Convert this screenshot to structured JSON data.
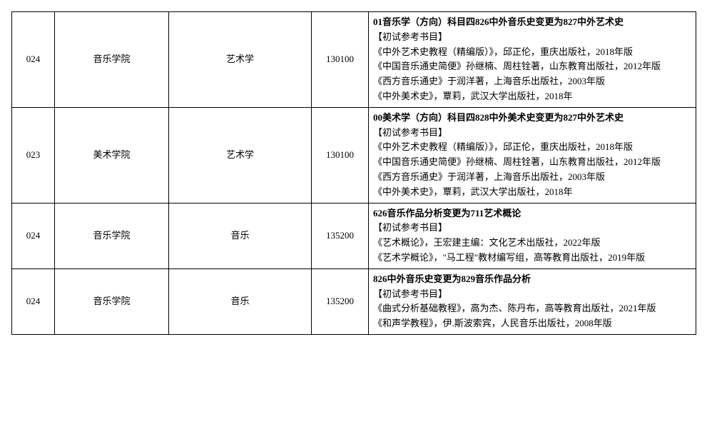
{
  "rows": [
    {
      "code": "024",
      "dept": "音乐学院",
      "subject": "艺术学",
      "num": "130100",
      "title": "01音乐学（方向）科目四826中外音乐史变更为827中外艺术史",
      "book_heading": "【初试参考书目】",
      "books": [
        "《中外艺术史教程（精编版）》，邱正伦，重庆出版社，2018年版",
        "《中国音乐通史简便》孙继楠、周柱铨著，山东教育出版社，2012年版",
        "《西方音乐通史》于润洋著，上海音乐出版社，2003年版",
        "《中外美术史》，覃莉，武汉大学出版社，2018年"
      ]
    },
    {
      "code": "023",
      "dept": "美术学院",
      "subject": "艺术学",
      "num": "130100",
      "title": "00美术学（方向）科目四828中外美术史变更为827中外艺术史",
      "book_heading": "【初试参考书目】",
      "books": [
        "《中外艺术史教程（精编版）》，邱正伦，重庆出版社，2018年版",
        "《中国音乐通史简便》孙继楠、周柱铨著，山东教育出版社，2012年版",
        "《西方音乐通史》于润洋著，上海音乐出版社，2003年版",
        "《中外美术史》，覃莉，武汉大学出版社，2018年"
      ]
    },
    {
      "code": "024",
      "dept": "音乐学院",
      "subject": "音乐",
      "num": "135200",
      "title": "626音乐作品分析变更为711艺术概论",
      "book_heading": "【初试参考书目】",
      "books": [
        "《艺术概论》，王宏建主编：文化艺术出版社，2022年版",
        "《艺术学概论》，\"马工程\"教材编写组，高等教育出版社，2019年版"
      ]
    },
    {
      "code": "024",
      "dept": "音乐学院",
      "subject": "音乐",
      "num": "135200",
      "title": "826中外音乐史变更为829音乐作品分析",
      "book_heading": "【初试参考书目】",
      "books": [
        "《曲式分析基础教程》，高为杰、陈丹布，高等教育出版社，2021年版",
        "《和声学教程》，伊.斯波索宾，人民音乐出版社，2008年版"
      ]
    }
  ]
}
